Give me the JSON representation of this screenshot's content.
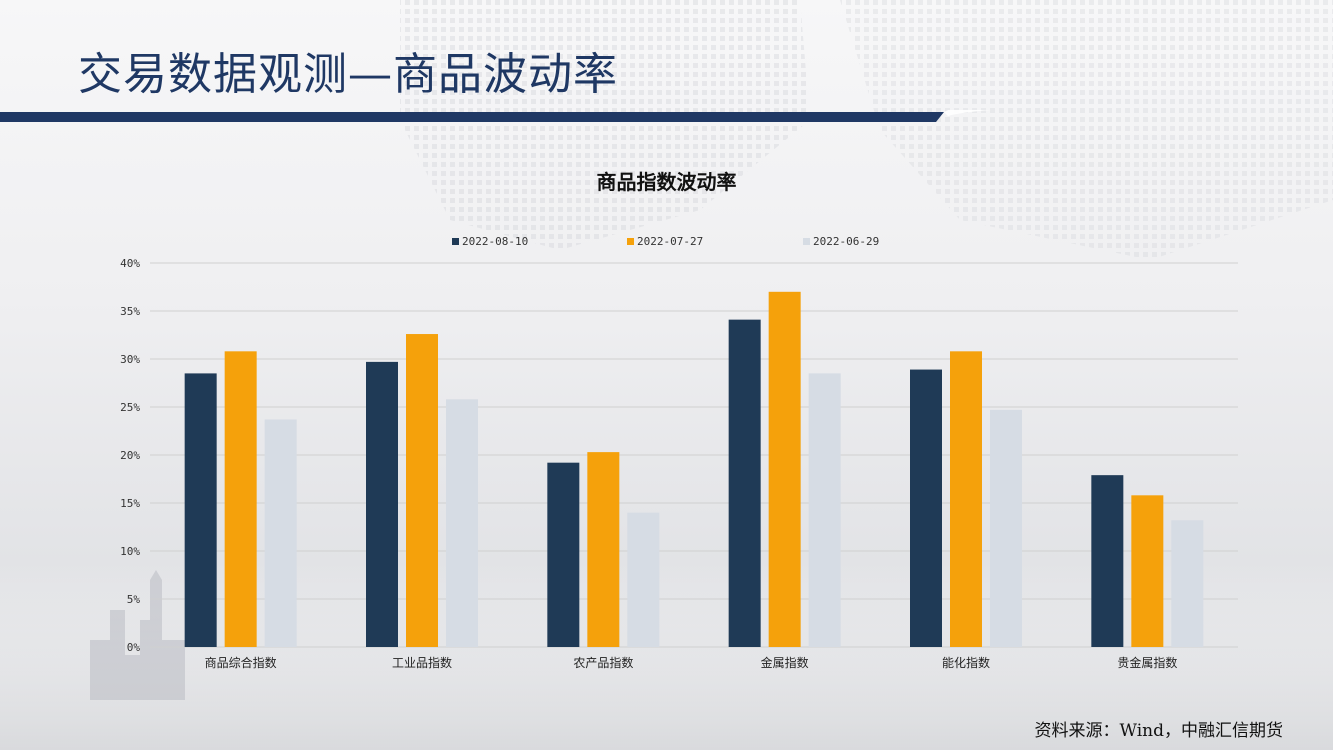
{
  "page": {
    "title": "交易数据观测—商品波动率",
    "source": "资料来源：Wind，中融汇信期货"
  },
  "colors": {
    "title": "#1f3864",
    "band": "#1f3864",
    "series": [
      "#1f3a56",
      "#f5a10b",
      "#d6dce4"
    ],
    "gridline": "#d0d0d0"
  },
  "chart_data": {
    "type": "bar",
    "title": "商品指数波动率",
    "categories": [
      "商品综合指数",
      "工业品指数",
      "农产品指数",
      "金属指数",
      "能化指数",
      "贵金属指数"
    ],
    "series": [
      {
        "name": "2022-08-10",
        "values": [
          28.5,
          29.7,
          19.2,
          34.1,
          28.9,
          17.9
        ]
      },
      {
        "name": "2022-07-27",
        "values": [
          30.8,
          32.6,
          20.3,
          37.0,
          30.8,
          15.8
        ]
      },
      {
        "name": "2022-06-29",
        "values": [
          23.7,
          25.8,
          14.0,
          28.5,
          24.7,
          13.2
        ]
      }
    ],
    "yticks": [
      "0%",
      "5%",
      "10%",
      "15%",
      "20%",
      "25%",
      "30%",
      "35%",
      "40%"
    ],
    "ylim": [
      0,
      40
    ],
    "grid": true,
    "legend_position": "top"
  }
}
